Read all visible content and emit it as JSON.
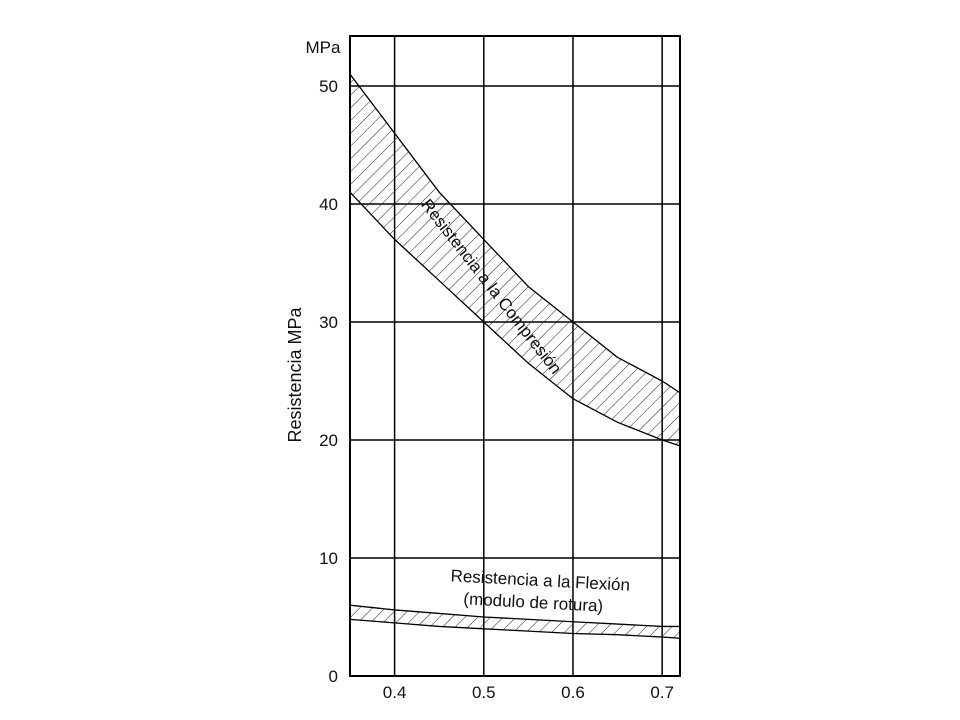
{
  "chart_data": {
    "type": "area",
    "xlabel": "",
    "ylabel": "Resistencia MPa",
    "y_unit": "MPa",
    "xlim": [
      0.35,
      0.72
    ],
    "ylim": [
      0,
      50
    ],
    "x_ticks": [
      "0.4",
      "0.5",
      "0.6",
      "0.7"
    ],
    "y_ticks": [
      "0",
      "10",
      "20",
      "30",
      "40",
      "50"
    ],
    "grid": true,
    "hatch": "diagonal",
    "bands": [
      {
        "name": "Resistencia a la Compresión",
        "x": [
          0.35,
          0.4,
          0.45,
          0.5,
          0.55,
          0.6,
          0.65,
          0.7,
          0.72
        ],
        "upper": [
          51.0,
          46.0,
          41.0,
          37.0,
          33.0,
          30.0,
          27.0,
          25.0,
          24.0
        ],
        "lower": [
          41.0,
          37.0,
          33.5,
          30.0,
          26.5,
          23.5,
          21.5,
          20.0,
          19.5
        ]
      },
      {
        "name": "Resistencia a la Flexión",
        "note": "(modulo de rotura)",
        "x": [
          0.35,
          0.4,
          0.45,
          0.5,
          0.55,
          0.6,
          0.65,
          0.7,
          0.72
        ],
        "upper": [
          6.0,
          5.6,
          5.3,
          5.0,
          4.8,
          4.6,
          4.4,
          4.2,
          4.2
        ],
        "lower": [
          4.8,
          4.5,
          4.2,
          4.0,
          3.8,
          3.6,
          3.5,
          3.3,
          3.2
        ]
      }
    ]
  }
}
